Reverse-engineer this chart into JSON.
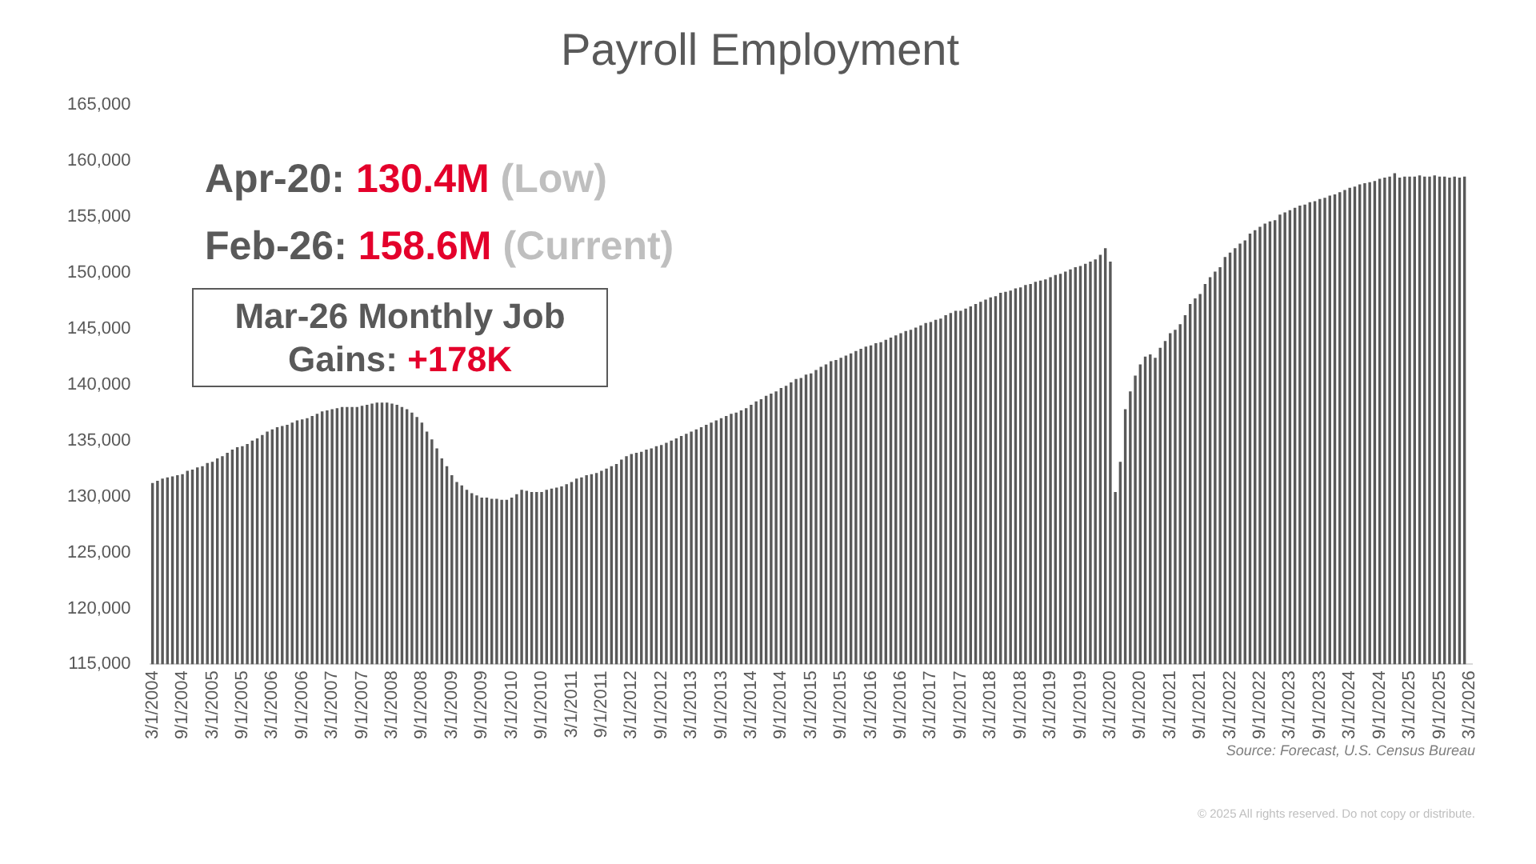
{
  "chart_data": {
    "type": "bar",
    "title": "Payroll Employment",
    "categories": [
      "3/1/2004",
      null,
      null,
      null,
      null,
      null,
      "9/1/2004",
      null,
      null,
      null,
      null,
      null,
      "3/1/2005",
      null,
      null,
      null,
      null,
      null,
      "9/1/2005",
      null,
      null,
      null,
      null,
      null,
      "3/1/2006",
      null,
      null,
      null,
      null,
      null,
      "9/1/2006",
      null,
      null,
      null,
      null,
      null,
      "3/1/2007",
      null,
      null,
      null,
      null,
      null,
      "9/1/2007",
      null,
      null,
      null,
      null,
      null,
      "3/1/2008",
      null,
      null,
      null,
      null,
      null,
      "9/1/2008",
      null,
      null,
      null,
      null,
      null,
      "3/1/2009",
      null,
      null,
      null,
      null,
      null,
      "9/1/2009",
      null,
      null,
      null,
      null,
      null,
      "3/1/2010",
      null,
      null,
      null,
      null,
      null,
      "9/1/2010",
      null,
      null,
      null,
      null,
      null,
      "3/1/2011",
      null,
      null,
      null,
      null,
      null,
      "9/1/2011",
      null,
      null,
      null,
      null,
      null,
      "3/1/2012",
      null,
      null,
      null,
      null,
      null,
      "9/1/2012",
      null,
      null,
      null,
      null,
      null,
      "3/1/2013",
      null,
      null,
      null,
      null,
      null,
      "9/1/2013",
      null,
      null,
      null,
      null,
      null,
      "3/1/2014",
      null,
      null,
      null,
      null,
      null,
      "9/1/2014",
      null,
      null,
      null,
      null,
      null,
      "3/1/2015",
      null,
      null,
      null,
      null,
      null,
      "9/1/2015",
      null,
      null,
      null,
      null,
      null,
      "3/1/2016",
      null,
      null,
      null,
      null,
      null,
      "9/1/2016",
      null,
      null,
      null,
      null,
      null,
      "3/1/2017",
      null,
      null,
      null,
      null,
      null,
      "9/1/2017",
      null,
      null,
      null,
      null,
      null,
      "3/1/2018",
      null,
      null,
      null,
      null,
      null,
      "9/1/2018",
      null,
      null,
      null,
      null,
      null,
      "3/1/2019",
      null,
      null,
      null,
      null,
      null,
      "9/1/2019",
      null,
      null,
      null,
      null,
      null,
      "3/1/2020",
      null,
      null,
      null,
      null,
      null,
      "9/1/2020",
      null,
      null,
      null,
      null,
      null,
      "3/1/2021",
      null,
      null,
      null,
      null,
      null,
      "9/1/2021",
      null,
      null,
      null,
      null,
      null,
      "3/1/2022",
      null,
      null,
      null,
      null,
      null,
      "9/1/2022",
      null,
      null,
      null,
      null,
      null,
      "3/1/2023",
      null,
      null,
      null,
      null,
      null,
      "9/1/2023",
      null,
      null,
      null,
      null,
      null,
      "3/1/2024",
      null,
      null,
      null,
      null,
      null,
      "9/1/2024",
      null,
      null,
      null,
      null,
      null,
      "3/1/2025",
      null,
      null,
      null,
      null,
      null,
      "9/1/2025",
      null,
      null,
      null,
      null,
      null,
      "3/1/2026"
    ],
    "values": [
      131200,
      131400,
      131600,
      131700,
      131800,
      131900,
      132000,
      132300,
      132400,
      132600,
      132700,
      133000,
      133100,
      133400,
      133600,
      133900,
      134200,
      134400,
      134500,
      134700,
      135000,
      135200,
      135500,
      135800,
      136000,
      136200,
      136300,
      136400,
      136600,
      136800,
      136900,
      137000,
      137200,
      137400,
      137600,
      137700,
      137800,
      137900,
      138000,
      138000,
      138000,
      138000,
      138100,
      138200,
      138300,
      138400,
      138400,
      138400,
      138300,
      138200,
      138000,
      137800,
      137500,
      137100,
      136600,
      135800,
      135100,
      134300,
      133400,
      132700,
      131900,
      131300,
      131000,
      130600,
      130300,
      130100,
      129900,
      129900,
      129800,
      129800,
      129700,
      129700,
      129900,
      130200,
      130600,
      130500,
      130400,
      130400,
      130400,
      130600,
      130700,
      130800,
      130900,
      131100,
      131300,
      131600,
      131700,
      131900,
      132000,
      132100,
      132300,
      132500,
      132700,
      132900,
      133300,
      133600,
      133800,
      133900,
      134000,
      134200,
      134300,
      134500,
      134600,
      134800,
      135000,
      135200,
      135400,
      135600,
      135800,
      136000,
      136200,
      136400,
      136600,
      136800,
      137000,
      137200,
      137400,
      137500,
      137700,
      137900,
      138200,
      138500,
      138700,
      139000,
      139200,
      139400,
      139700,
      139900,
      140200,
      140500,
      140600,
      140900,
      141000,
      141300,
      141600,
      141800,
      142100,
      142200,
      142400,
      142600,
      142800,
      143000,
      143200,
      143400,
      143500,
      143700,
      143800,
      144000,
      144200,
      144400,
      144600,
      144800,
      144900,
      145100,
      145300,
      145500,
      145600,
      145800,
      145900,
      146200,
      146400,
      146600,
      146600,
      146800,
      147000,
      147200,
      147400,
      147600,
      147800,
      147900,
      148200,
      148300,
      148400,
      148600,
      148700,
      148900,
      149000,
      149200,
      149300,
      149400,
      149600,
      149800,
      149900,
      150100,
      150300,
      150500,
      150600,
      150800,
      151000,
      151200,
      151600,
      152200,
      151000,
      130400,
      133100,
      137800,
      139400,
      140800,
      141800,
      142500,
      142700,
      142400,
      143300,
      143900,
      144600,
      144900,
      145400,
      146200,
      147200,
      147700,
      148100,
      149000,
      149600,
      150100,
      150500,
      151400,
      151800,
      152200,
      152600,
      152900,
      153500,
      153800,
      154100,
      154400,
      154600,
      154700,
      155200,
      155400,
      155600,
      155800,
      156000,
      156100,
      156300,
      156400,
      156600,
      156700,
      156900,
      157000,
      157200,
      157400,
      157600,
      157700,
      157900,
      158000,
      158100,
      158200,
      158400,
      158500,
      158600,
      158900,
      158500,
      158600,
      158600,
      158600,
      158700,
      158600,
      158600,
      158700,
      158600,
      158600,
      158500,
      158600,
      158500,
      158600,
      null
    ],
    "color": "#595959",
    "ylim": [
      115000,
      165000
    ],
    "yticks": [
      {
        "value": 115000,
        "label": "115,000"
      },
      {
        "value": 120000,
        "label": "120,000"
      },
      {
        "value": 125000,
        "label": "125,000"
      },
      {
        "value": 130000,
        "label": "130,000"
      },
      {
        "value": 135000,
        "label": "135,000"
      },
      {
        "value": 140000,
        "label": "140,000"
      },
      {
        "value": 145000,
        "label": "145,000"
      },
      {
        "value": 150000,
        "label": "150,000"
      },
      {
        "value": 155000,
        "label": "155,000"
      },
      {
        "value": 160000,
        "label": "160,000"
      },
      {
        "value": 165000,
        "label": "165,000"
      }
    ],
    "grid": false,
    "legend": false,
    "annotations": [
      "Apr-20: 130.4M (Low)",
      "Feb-26: 158.6M (Current)",
      "Mar-26 Monthly Job Gains: +178K",
      "Source: Forecast, U.S. Census Bureau",
      "© 2025 All rights reserved. Do not copy or distribute."
    ]
  }
}
